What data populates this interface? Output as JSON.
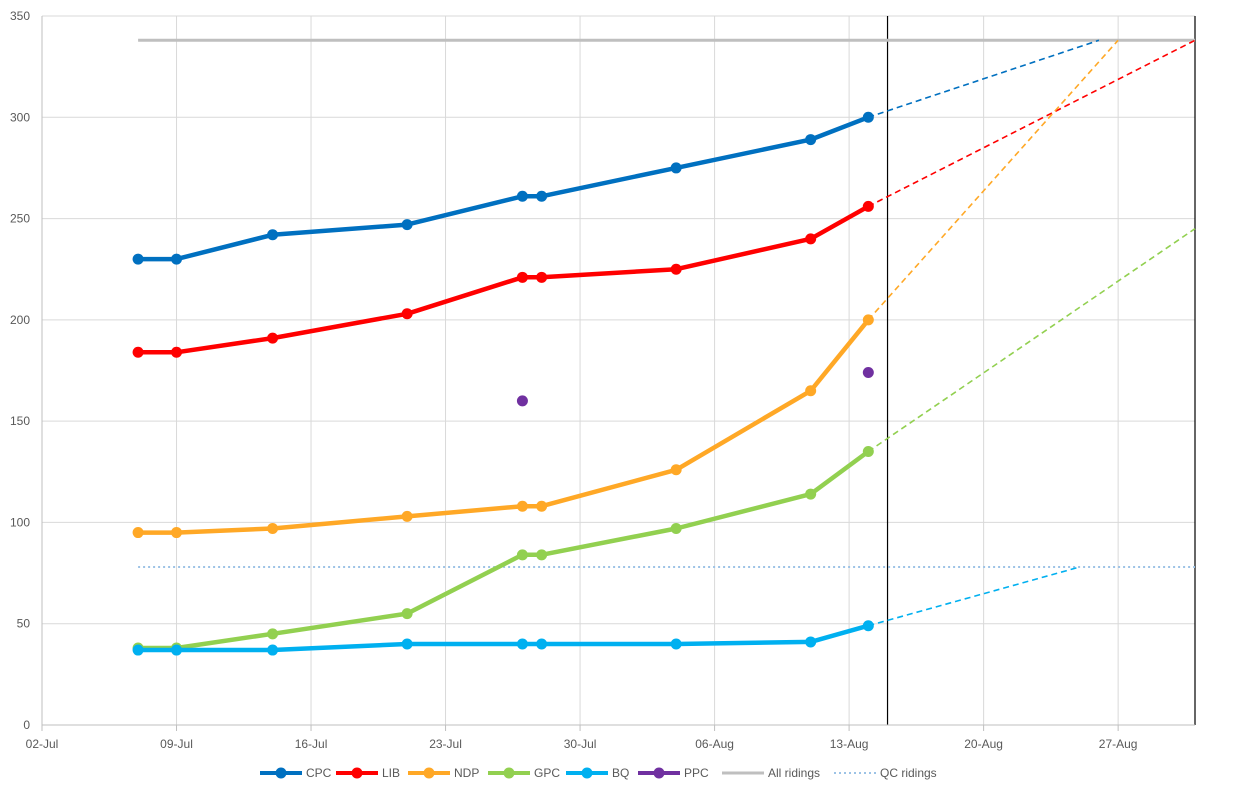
{
  "chart_data": {
    "type": "line",
    "title": "",
    "xlabel": "",
    "ylabel": "",
    "x_axis": {
      "type": "date",
      "range": [
        "2019-07-02",
        "2019-08-31"
      ],
      "tick_labels": [
        "02-Jul",
        "09-Jul",
        "16-Jul",
        "23-Jul",
        "30-Jul",
        "06-Aug",
        "13-Aug",
        "20-Aug",
        "27-Aug"
      ],
      "tick_dates": [
        "2019-07-02",
        "2019-07-09",
        "2019-07-16",
        "2019-07-23",
        "2019-07-30",
        "2019-08-06",
        "2019-08-13",
        "2019-08-20",
        "2019-08-27"
      ]
    },
    "y_axis": {
      "range": [
        0,
        350
      ],
      "tick_labels": [
        "0",
        "50",
        "100",
        "150",
        "200",
        "250",
        "300",
        "350"
      ],
      "tick_values": [
        0,
        50,
        100,
        150,
        200,
        250,
        300,
        350
      ]
    },
    "grid": true,
    "legend_position": "bottom",
    "vertical_marker_dates": [
      "2019-08-15",
      "2019-08-31"
    ],
    "series": [
      {
        "name": "CPC",
        "color": "#0070C0",
        "style": "solid-markers",
        "points": [
          [
            "2019-07-07",
            230
          ],
          [
            "2019-07-09",
            230
          ],
          [
            "2019-07-14",
            242
          ],
          [
            "2019-07-21",
            247
          ],
          [
            "2019-07-27",
            261
          ],
          [
            "2019-07-28",
            261
          ],
          [
            "2019-08-04",
            275
          ],
          [
            "2019-08-11",
            289
          ],
          [
            "2019-08-14",
            300
          ]
        ],
        "projection": [
          [
            "2019-08-14",
            300
          ],
          [
            "2019-08-26",
            338
          ]
        ]
      },
      {
        "name": "LIB",
        "color": "#FF0000",
        "style": "solid-markers",
        "points": [
          [
            "2019-07-07",
            184
          ],
          [
            "2019-07-09",
            184
          ],
          [
            "2019-07-14",
            191
          ],
          [
            "2019-07-21",
            203
          ],
          [
            "2019-07-27",
            221
          ],
          [
            "2019-07-28",
            221
          ],
          [
            "2019-08-04",
            225
          ],
          [
            "2019-08-11",
            240
          ],
          [
            "2019-08-14",
            256
          ]
        ],
        "projection": [
          [
            "2019-08-14",
            256
          ],
          [
            "2019-08-31",
            338
          ]
        ]
      },
      {
        "name": "NDP",
        "color": "#FFA826",
        "style": "solid-markers",
        "points": [
          [
            "2019-07-07",
            95
          ],
          [
            "2019-07-09",
            95
          ],
          [
            "2019-07-14",
            97
          ],
          [
            "2019-07-21",
            103
          ],
          [
            "2019-07-27",
            108
          ],
          [
            "2019-07-28",
            108
          ],
          [
            "2019-08-04",
            126
          ],
          [
            "2019-08-11",
            165
          ],
          [
            "2019-08-14",
            200
          ]
        ],
        "projection": [
          [
            "2019-08-14",
            200
          ],
          [
            "2019-08-27",
            338
          ]
        ]
      },
      {
        "name": "GPC",
        "color": "#92D050",
        "style": "solid-markers",
        "points": [
          [
            "2019-07-07",
            38
          ],
          [
            "2019-07-09",
            38
          ],
          [
            "2019-07-14",
            45
          ],
          [
            "2019-07-21",
            55
          ],
          [
            "2019-07-27",
            84
          ],
          [
            "2019-07-28",
            84
          ],
          [
            "2019-08-04",
            97
          ],
          [
            "2019-08-11",
            114
          ],
          [
            "2019-08-14",
            135
          ]
        ],
        "projection": [
          [
            "2019-08-14",
            135
          ],
          [
            "2019-08-31",
            245
          ]
        ]
      },
      {
        "name": "BQ",
        "color": "#00B0F0",
        "style": "solid-markers",
        "points": [
          [
            "2019-07-07",
            37
          ],
          [
            "2019-07-09",
            37
          ],
          [
            "2019-07-14",
            37
          ],
          [
            "2019-07-21",
            40
          ],
          [
            "2019-07-27",
            40
          ],
          [
            "2019-07-28",
            40
          ],
          [
            "2019-08-04",
            40
          ],
          [
            "2019-08-11",
            41
          ],
          [
            "2019-08-14",
            49
          ]
        ],
        "projection": [
          [
            "2019-08-14",
            49
          ],
          [
            "2019-08-25",
            78
          ]
        ]
      },
      {
        "name": "PPC",
        "color": "#7030A0",
        "style": "markers-only",
        "points": [
          [
            "2019-07-27",
            160
          ],
          [
            "2019-08-14",
            174
          ]
        ]
      },
      {
        "name": "All ridings",
        "color": "#BFBFBF",
        "style": "solid-line",
        "points": [
          [
            "2019-07-07",
            338
          ],
          [
            "2019-08-31",
            338
          ]
        ]
      },
      {
        "name": "QC ridings",
        "color": "#9DC3E6",
        "style": "dotted-line",
        "points": [
          [
            "2019-07-07",
            78
          ],
          [
            "2019-08-31",
            78
          ]
        ]
      }
    ]
  }
}
